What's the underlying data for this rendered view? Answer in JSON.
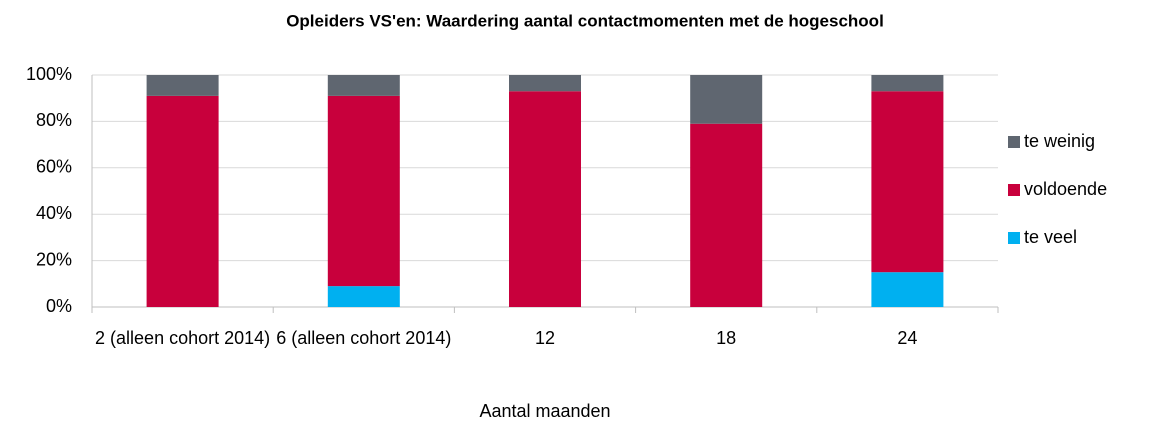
{
  "chart_data": {
    "type": "stacked_bar",
    "title": "Opleiders VS'en: Waardering aantal contactmomenten met de hogeschool",
    "x_label": "Aantal maanden",
    "categories": [
      "2 (alleen cohort 2014)",
      "6 (alleen cohort 2014)",
      "12",
      "18",
      "24"
    ],
    "series": [
      {
        "name": "te veel",
        "color": "#00b0f0",
        "values": [
          0,
          9,
          0,
          0,
          15
        ]
      },
      {
        "name": "voldoende",
        "color": "#c8003c",
        "values": [
          91,
          82,
          93,
          79,
          78
        ]
      },
      {
        "name": "te weinig",
        "color": "#5f6670",
        "values": [
          9,
          9,
          7,
          21,
          7
        ]
      }
    ],
    "ylim": [
      0,
      100
    ],
    "yticks": [
      {
        "value": 0,
        "label": "0%"
      },
      {
        "value": 20,
        "label": "20%"
      },
      {
        "value": 40,
        "label": "40%"
      },
      {
        "value": 60,
        "label": "60%"
      },
      {
        "value": 80,
        "label": "80%"
      },
      {
        "value": 100,
        "label": "100%"
      }
    ],
    "grid": true,
    "legend": "right"
  }
}
